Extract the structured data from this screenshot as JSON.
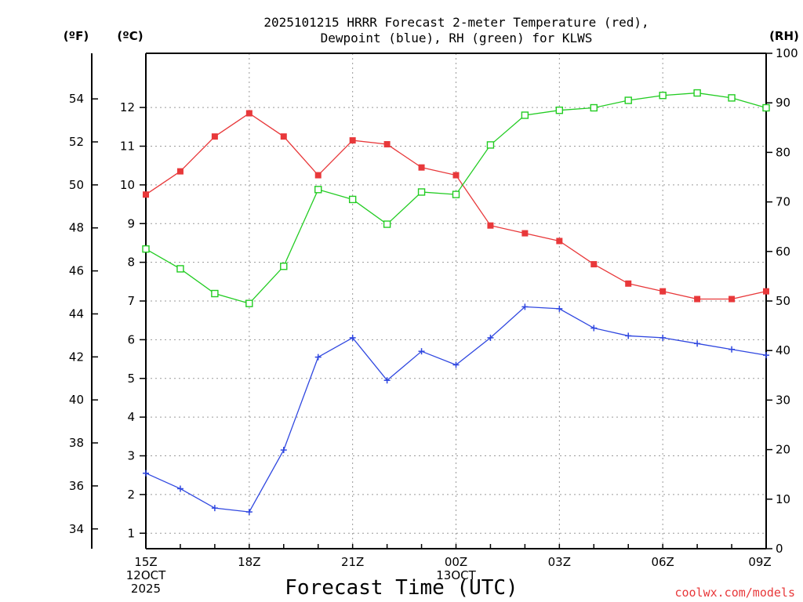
{
  "title_line1": "2025101215 HRRR Forecast 2-meter Temperature (red),",
  "title_line2": "Dewpoint (blue), RH (green) for KLWS",
  "unit_f": "(ºF)",
  "unit_c": "(ºC)",
  "unit_rh": "(RH)",
  "xlabel": "Forecast Time (UTC)",
  "credit": "coolwx.com/models",
  "colors": {
    "temp": "#e8383a",
    "dewpoint": "#2f47e0",
    "rh": "#22cc22",
    "credit": "#e8383a"
  },
  "chart_data": {
    "type": "line",
    "x_hours": [
      15,
      16,
      17,
      18,
      19,
      20,
      21,
      22,
      23,
      24,
      25,
      26,
      27,
      28,
      29,
      30,
      31,
      32,
      33
    ],
    "x_tick_labels": [
      {
        "hour": 15,
        "lines": [
          "15Z",
          "12OCT",
          "2025"
        ]
      },
      {
        "hour": 18,
        "lines": [
          "18Z"
        ]
      },
      {
        "hour": 21,
        "lines": [
          "21Z"
        ]
      },
      {
        "hour": 24,
        "lines": [
          "00Z",
          "13OCT"
        ]
      },
      {
        "hour": 27,
        "lines": [
          "03Z"
        ]
      },
      {
        "hour": 30,
        "lines": [
          "06Z"
        ]
      },
      {
        "hour": 33,
        "lines": [
          "09Z"
        ]
      }
    ],
    "xlim": [
      15,
      33
    ],
    "ylim_c": [
      0.6,
      13.4
    ],
    "yticks_c": [
      1,
      2,
      3,
      4,
      5,
      6,
      7,
      8,
      9,
      10,
      11,
      12
    ],
    "yticks_f": [
      34,
      36,
      38,
      40,
      42,
      44,
      46,
      48,
      50,
      52,
      54
    ],
    "ylim_rh": [
      0,
      100
    ],
    "yticks_rh": [
      0,
      10,
      20,
      30,
      40,
      50,
      60,
      70,
      80,
      90,
      100
    ],
    "grid": true,
    "series": [
      {
        "name": "Temperature",
        "axis": "c",
        "marker": "square-filled",
        "values": [
          9.75,
          10.35,
          11.25,
          11.85,
          11.25,
          10.25,
          11.15,
          11.05,
          10.45,
          10.25,
          8.95,
          8.75,
          8.55,
          7.95,
          7.45,
          7.25,
          7.05,
          7.05,
          7.25
        ]
      },
      {
        "name": "Dewpoint",
        "axis": "c",
        "marker": "plus",
        "values": [
          2.55,
          2.15,
          1.65,
          1.55,
          3.15,
          5.55,
          6.05,
          4.95,
          5.7,
          5.35,
          6.05,
          6.85,
          6.8,
          6.3,
          6.1,
          6.05,
          5.9,
          5.75,
          5.6
        ]
      },
      {
        "name": "RH",
        "axis": "rh",
        "marker": "square-open",
        "values": [
          60.5,
          56.5,
          51.5,
          49.5,
          57,
          72.5,
          70.5,
          65.5,
          72,
          71.5,
          81.5,
          87.5,
          88.5,
          89,
          90.5,
          91.5,
          92,
          91,
          89
        ]
      }
    ]
  }
}
